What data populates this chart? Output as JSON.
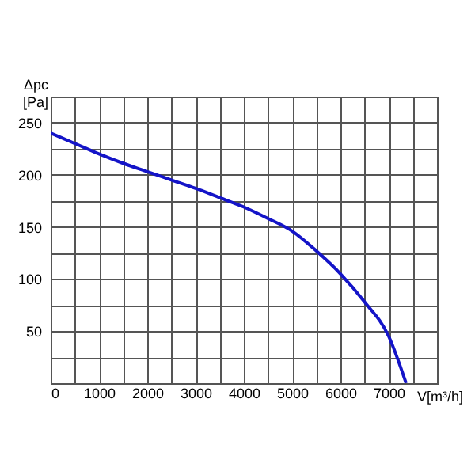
{
  "chart_data": {
    "type": "line",
    "xlabel": "V[m³/h]",
    "ylabel": "Δpc\n[Pa]",
    "x": [
      0,
      500,
      1000,
      1500,
      2000,
      2500,
      3000,
      3500,
      4000,
      4500,
      5000,
      5500,
      6000,
      6500,
      7000,
      7360
    ],
    "series": [
      {
        "color": "#1414c8",
        "values": [
          240,
          230,
          220,
          211,
          203,
          195,
          187,
          178,
          169,
          158,
          146,
          127,
          105,
          78,
          45,
          0
        ]
      }
    ],
    "xlim": [
      0,
      8000
    ],
    "ylim": [
      0,
      275
    ],
    "xticks": [
      0,
      {
        "value": 500,
        "label": null
      },
      1000,
      {
        "value": 1500,
        "label": null
      },
      2000,
      {
        "value": 2500,
        "label": null
      },
      3000,
      {
        "value": 3500,
        "label": null
      },
      4000,
      {
        "value": 4500,
        "label": null
      },
      5000,
      {
        "value": 5500,
        "label": null
      },
      6000,
      {
        "value": 6500,
        "label": null
      },
      7000,
      {
        "value": 7500,
        "label": null
      },
      {
        "value": 8000,
        "label": null
      }
    ],
    "yticks": [
      {
        "value": 0,
        "label": null
      },
      {
        "value": 25,
        "label": null
      },
      50,
      {
        "value": 75,
        "label": null
      },
      100,
      {
        "value": 125,
        "label": null
      },
      150,
      {
        "value": 175,
        "label": null
      },
      200,
      {
        "value": 225,
        "label": null
      },
      250,
      {
        "value": 275,
        "label": null
      }
    ],
    "grid": true,
    "marker": "none",
    "line_style": "solid"
  }
}
